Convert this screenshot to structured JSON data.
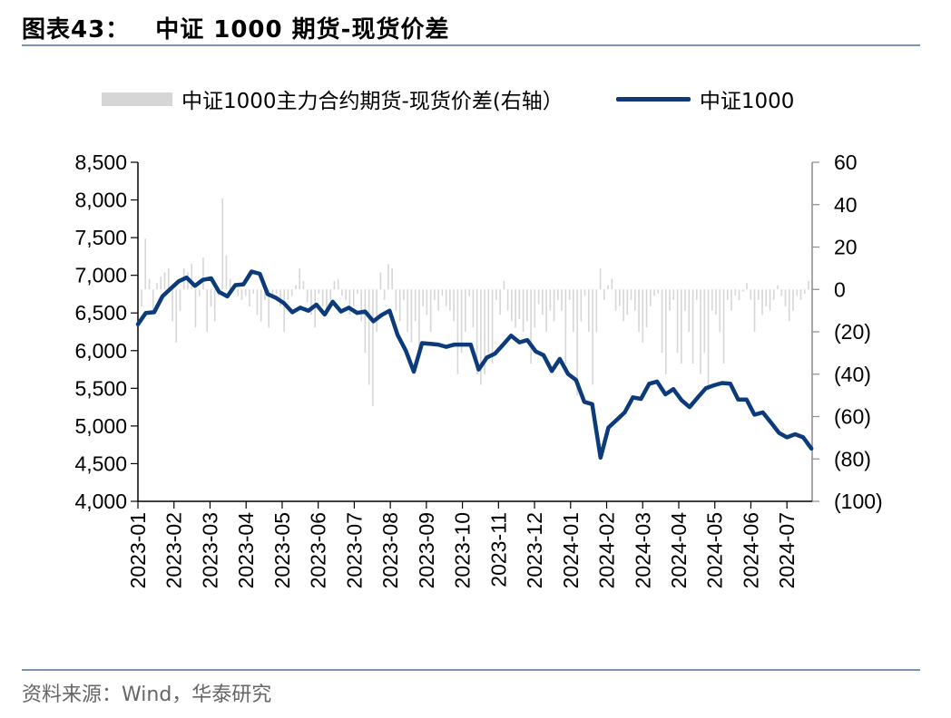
{
  "header": {
    "label": "图表43：",
    "title": "中证 1000 期货-现货价差"
  },
  "source": "资料来源：Wind，华泰研究",
  "colors": {
    "line": "#0b3b7a",
    "bar": "#d6d6d6",
    "rule": "#7a93b6"
  },
  "chart_data": {
    "type": "line+bar",
    "legend_position": "top",
    "grid": false,
    "series": [
      {
        "name": "中证1000主力合约期货-现货价差(右轴）",
        "type": "bar",
        "axis": "right",
        "values": [
          -8,
          24,
          5,
          -10,
          3,
          6,
          8,
          10,
          -15,
          -25,
          -10,
          10,
          8,
          12,
          -18,
          -3,
          15,
          -20,
          -8,
          -15,
          -3,
          43,
          16,
          5,
          2,
          -3,
          -5,
          -3,
          -8,
          -2,
          -12,
          -15,
          -5,
          -18,
          -3,
          -2,
          -8,
          -20,
          -5,
          -3,
          2,
          10,
          4,
          -6,
          -12,
          -18,
          -2,
          -8,
          -10,
          -5,
          4,
          5,
          -3,
          -5,
          -12,
          -8,
          -2,
          -15,
          -30,
          -45,
          -55,
          -20,
          8,
          -5,
          12,
          10,
          -10,
          -15,
          -5,
          -20,
          -25,
          -15,
          -30,
          -8,
          -12,
          -20,
          -5,
          -10,
          -3,
          -8,
          -10,
          -15,
          -40,
          -30,
          -20,
          -3,
          -18,
          -40,
          -45,
          -40,
          -30,
          -35,
          -5,
          -12,
          4,
          -10,
          -15,
          -18,
          -14,
          -20,
          -15,
          -35,
          -18,
          -7,
          -12,
          -20,
          -10,
          -15,
          -5,
          -10,
          -35,
          -5,
          -20,
          -50,
          -15,
          -3,
          -20,
          -45,
          -20,
          10,
          -5,
          2,
          5,
          -10,
          -8,
          -15,
          -12,
          -5,
          -10,
          -20,
          -25,
          -18,
          -8,
          -3,
          -2,
          -30,
          -40,
          -10,
          -5,
          -30,
          -35,
          -10,
          -20,
          -35,
          -5,
          -40,
          -30,
          -48,
          -10,
          -12,
          -20,
          -35,
          -5,
          -10,
          -3,
          -5,
          -1,
          3,
          -5,
          -20,
          -5,
          -12,
          -8,
          -10,
          -5,
          2,
          -3,
          -8,
          -15,
          -10,
          -3,
          -5,
          -2,
          4
        ]
      },
      {
        "name": "中证1000",
        "type": "line",
        "axis": "left",
        "x": [
          0,
          0.22,
          0.45,
          0.68,
          0.9,
          1.13,
          1.35,
          1.58,
          1.8,
          2.03,
          2.25,
          2.48,
          2.7,
          2.93,
          3.15,
          3.38,
          3.6,
          3.83,
          4.05,
          4.28,
          4.5,
          4.73,
          4.95,
          5.18,
          5.4,
          5.63,
          5.85,
          6.08,
          6.3,
          6.53,
          6.75,
          6.98,
          7.2,
          7.43,
          7.65,
          7.88,
          8.1,
          8.33,
          8.55,
          8.78,
          9.0,
          9.23,
          9.45,
          9.68,
          9.9,
          10.13,
          10.35,
          10.58,
          10.8,
          11.03,
          11.25,
          11.48,
          11.7,
          11.93,
          12.15,
          12.38,
          12.6,
          12.83,
          13.05,
          13.28,
          13.5,
          13.73,
          13.95,
          14.18,
          14.4,
          14.63,
          14.85,
          15.08,
          15.3,
          15.53,
          15.75,
          15.98,
          16.2,
          16.43,
          16.65,
          16.88,
          17.1,
          17.33,
          17.55,
          17.78,
          18.0,
          18.23,
          18.45,
          18.68
        ],
        "values": [
          6350,
          6500,
          6510,
          6720,
          6820,
          6920,
          6970,
          6860,
          6940,
          6960,
          6780,
          6720,
          6870,
          6880,
          7050,
          7020,
          6750,
          6700,
          6630,
          6510,
          6570,
          6530,
          6610,
          6480,
          6650,
          6520,
          6570,
          6500,
          6520,
          6390,
          6470,
          6530,
          6210,
          6000,
          5720,
          6100,
          6090,
          6080,
          6050,
          6080,
          6080,
          6080,
          5750,
          5910,
          5960,
          6080,
          6200,
          6110,
          6140,
          5990,
          5940,
          5730,
          5890,
          5690,
          5610,
          5320,
          5290,
          4580,
          4980,
          5080,
          5180,
          5380,
          5360,
          5560,
          5590,
          5420,
          5490,
          5340,
          5250,
          5380,
          5500,
          5540,
          5570,
          5560,
          5350,
          5350,
          5150,
          5180,
          5050,
          4910,
          4850,
          4890,
          4850,
          4700
        ]
      }
    ],
    "left_axis": {
      "min": 4000,
      "max": 8500,
      "step": 500,
      "ticks": [
        "4,000",
        "4,500",
        "5,000",
        "5,500",
        "6,000",
        "6,500",
        "7,000",
        "7,500",
        "8,000",
        "8,500"
      ]
    },
    "right_axis": {
      "min": -100,
      "max": 60,
      "step": 20,
      "ticks": [
        "(100)",
        "(80)",
        "(60)",
        "(40)",
        "(20)",
        "0",
        "20",
        "40",
        "60"
      ]
    },
    "x_axis": {
      "min": 0,
      "max": 18.7,
      "categories": [
        "2023-01",
        "2023-02",
        "2023-03",
        "2023-04",
        "2023-05",
        "2023-06",
        "2023-07",
        "2023-08",
        "2023-09",
        "2023-10",
        "2023-11",
        "2023-12",
        "2024-01",
        "2024-02",
        "2024-03",
        "2024-04",
        "2024-05",
        "2024-06",
        "2024-07"
      ]
    }
  }
}
